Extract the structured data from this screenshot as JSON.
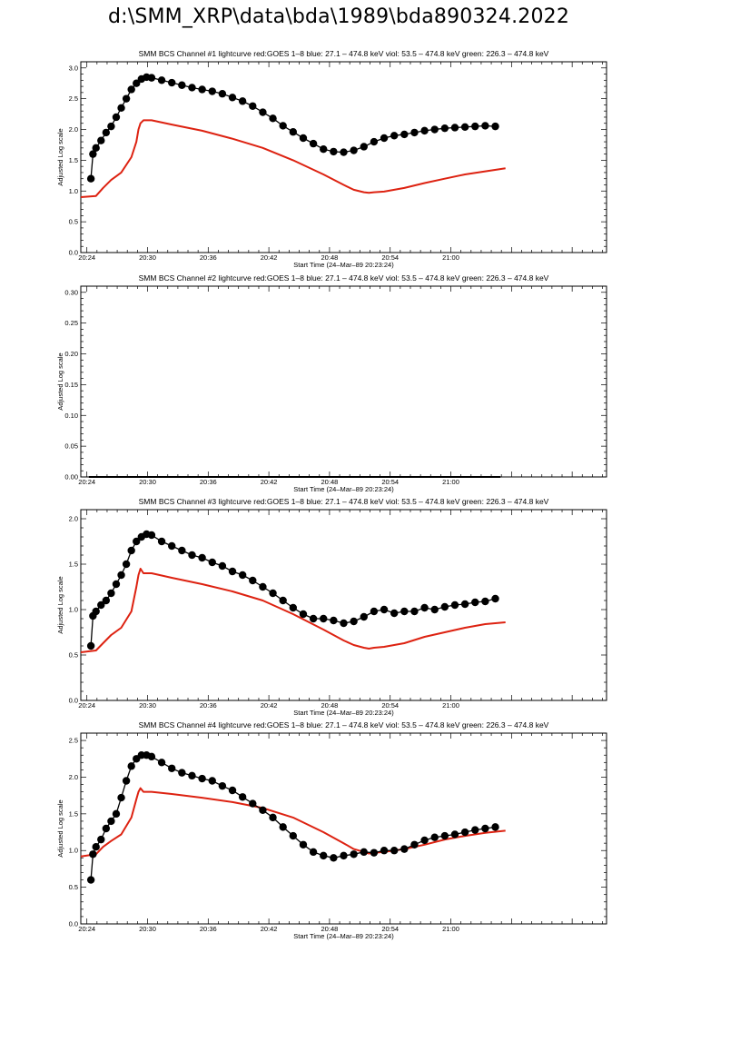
{
  "page": {
    "title": "d:\\SMM_XRP\\data\\bda\\1989\\bda890324.2022"
  },
  "legend_colors": {
    "red": "#dd2211",
    "black": "#000000"
  },
  "chart_data": [
    {
      "type": "line",
      "title": "SMM BCS Channel #1 lightcurve  red:GOES 1–8  blue: 27.1 – 474.8 keV  viol: 53.5 – 474.8 keV  green: 226.3 – 474.8 keV",
      "xlabel": "Start Time (24–Mar–89 20:23:24)",
      "ylabel": "Adjusted Log scale",
      "x_unit": "minutes after 20:23:24",
      "xlim": [
        0,
        52
      ],
      "ylim": [
        0,
        3.1
      ],
      "xticks": [
        {
          "value": 0.6,
          "label": "20:24"
        },
        {
          "value": 6.6,
          "label": "20:30"
        },
        {
          "value": 12.6,
          "label": "20:36"
        },
        {
          "value": 18.6,
          "label": "20:42"
        },
        {
          "value": 24.6,
          "label": "20:48"
        },
        {
          "value": 30.6,
          "label": "20:54"
        },
        {
          "value": 36.6,
          "label": "21:00"
        }
      ],
      "yticks": [
        {
          "value": 0,
          "label": "0.0"
        },
        {
          "value": 0.5,
          "label": "0.5"
        },
        {
          "value": 1.0,
          "label": "1.0"
        },
        {
          "value": 1.5,
          "label": "1.5"
        },
        {
          "value": 2.0,
          "label": "2.0"
        },
        {
          "value": 2.5,
          "label": "2.5"
        },
        {
          "value": 3.0,
          "label": "3.0"
        }
      ],
      "series": [
        {
          "color": "red",
          "style": "line",
          "x": [
            0,
            1.5,
            2.2,
            3,
            4,
            5,
            5.5,
            5.7,
            5.9,
            6.2,
            7,
            9,
            12,
            15,
            18,
            21,
            24,
            26,
            27,
            28,
            28.5,
            29,
            30,
            32,
            34,
            36,
            38,
            40,
            42
          ],
          "y": [
            0.9,
            0.92,
            1.05,
            1.18,
            1.3,
            1.55,
            1.8,
            2.0,
            2.1,
            2.15,
            2.15,
            2.08,
            1.98,
            1.85,
            1.7,
            1.5,
            1.27,
            1.1,
            1.02,
            0.98,
            0.97,
            0.98,
            0.99,
            1.05,
            1.13,
            1.2,
            1.27,
            1.32,
            1.37
          ]
        },
        {
          "color": "black",
          "style": "points",
          "x": [
            1,
            1.2,
            1.5,
            2,
            2.5,
            3,
            3.5,
            4,
            4.5,
            5,
            5.5,
            6,
            6.5,
            7,
            8,
            9,
            10,
            11,
            12,
            13,
            14,
            15,
            16,
            17,
            18,
            19,
            20,
            21,
            22,
            23,
            24,
            25,
            26,
            27,
            28,
            29,
            30,
            31,
            32,
            33,
            34,
            35,
            36,
            37,
            38,
            39,
            40,
            41
          ],
          "y": [
            1.2,
            1.6,
            1.7,
            1.82,
            1.95,
            2.05,
            2.2,
            2.35,
            2.5,
            2.65,
            2.75,
            2.82,
            2.85,
            2.84,
            2.8,
            2.76,
            2.72,
            2.68,
            2.65,
            2.62,
            2.58,
            2.52,
            2.46,
            2.38,
            2.28,
            2.18,
            2.06,
            1.96,
            1.86,
            1.77,
            1.68,
            1.64,
            1.63,
            1.66,
            1.72,
            1.8,
            1.86,
            1.9,
            1.92,
            1.95,
            1.98,
            2.0,
            2.02,
            2.03,
            2.04,
            2.05,
            2.06,
            2.05
          ]
        }
      ]
    },
    {
      "type": "line",
      "title": "SMM BCS Channel #2 lightcurve  red:GOES 1–8  blue: 27.1 – 474.8 keV  viol: 53.5 – 474.8 keV  green: 226.3 – 474.8 keV",
      "xlabel": "Start Time (24–Mar–89 20:23:24)",
      "ylabel": "Adjusted Log scale",
      "x_unit": "minutes after 20:23:24",
      "xlim": [
        0,
        52
      ],
      "ylim": [
        0,
        0.31
      ],
      "xticks": [
        {
          "value": 0.6,
          "label": "20:24"
        },
        {
          "value": 6.6,
          "label": "20:30"
        },
        {
          "value": 12.6,
          "label": "20:36"
        },
        {
          "value": 18.6,
          "label": "20:42"
        },
        {
          "value": 24.6,
          "label": "20:48"
        },
        {
          "value": 30.6,
          "label": "20:54"
        },
        {
          "value": 36.6,
          "label": "21:00"
        }
      ],
      "yticks": [
        {
          "value": 0,
          "label": "0.00"
        },
        {
          "value": 0.05,
          "label": "0.05"
        },
        {
          "value": 0.1,
          "label": "0.10"
        },
        {
          "value": 0.15,
          "label": "0.15"
        },
        {
          "value": 0.2,
          "label": "0.20"
        },
        {
          "value": 0.25,
          "label": "0.25"
        },
        {
          "value": 0.3,
          "label": "0.30"
        }
      ],
      "series": [
        {
          "color": "black",
          "style": "line",
          "x": [
            0.8,
            41.5
          ],
          "y": [
            0,
            0
          ]
        }
      ]
    },
    {
      "type": "line",
      "title": "SMM BCS Channel #3 lightcurve  red:GOES 1–8  blue: 27.1 – 474.8 keV  viol: 53.5 – 474.8 keV  green: 226.3 – 474.8 keV",
      "xlabel": "Start Time (24–Mar–89 20:23:24)",
      "ylabel": "Adjusted Log scale",
      "x_unit": "minutes after 20:23:24",
      "xlim": [
        0,
        52
      ],
      "ylim": [
        0,
        2.1
      ],
      "xticks": [
        {
          "value": 0.6,
          "label": "20:24"
        },
        {
          "value": 6.6,
          "label": "20:30"
        },
        {
          "value": 12.6,
          "label": "20:36"
        },
        {
          "value": 18.6,
          "label": "20:42"
        },
        {
          "value": 24.6,
          "label": "20:48"
        },
        {
          "value": 30.6,
          "label": "20:54"
        },
        {
          "value": 36.6,
          "label": "21:00"
        }
      ],
      "yticks": [
        {
          "value": 0,
          "label": "0.0"
        },
        {
          "value": 0.5,
          "label": "0.5"
        },
        {
          "value": 1.0,
          "label": "1.0"
        },
        {
          "value": 1.5,
          "label": "1.5"
        },
        {
          "value": 2.0,
          "label": "2.0"
        }
      ],
      "series": [
        {
          "color": "red",
          "style": "line",
          "x": [
            0,
            1.5,
            2.2,
            3,
            4,
            5,
            5.5,
            5.7,
            5.9,
            6.2,
            7,
            9,
            12,
            15,
            18,
            21,
            24,
            26,
            27,
            28,
            28.5,
            29,
            30,
            32,
            34,
            36,
            38,
            40,
            42
          ],
          "y": [
            0.53,
            0.55,
            0.63,
            0.72,
            0.8,
            0.98,
            1.25,
            1.38,
            1.45,
            1.4,
            1.4,
            1.35,
            1.28,
            1.2,
            1.1,
            0.95,
            0.78,
            0.66,
            0.61,
            0.58,
            0.57,
            0.58,
            0.59,
            0.63,
            0.7,
            0.75,
            0.8,
            0.84,
            0.86
          ]
        },
        {
          "color": "black",
          "style": "points",
          "x": [
            1,
            1.2,
            1.5,
            2,
            2.5,
            3,
            3.5,
            4,
            4.5,
            5,
            5.5,
            6,
            6.5,
            7,
            8,
            9,
            10,
            11,
            12,
            13,
            14,
            15,
            16,
            17,
            18,
            19,
            20,
            21,
            22,
            23,
            24,
            25,
            26,
            27,
            28,
            29,
            30,
            31,
            32,
            33,
            34,
            35,
            36,
            37,
            38,
            39,
            40,
            41
          ],
          "y": [
            0.6,
            0.93,
            0.98,
            1.05,
            1.1,
            1.18,
            1.28,
            1.38,
            1.5,
            1.65,
            1.75,
            1.8,
            1.83,
            1.82,
            1.75,
            1.7,
            1.65,
            1.6,
            1.57,
            1.52,
            1.48,
            1.42,
            1.38,
            1.32,
            1.25,
            1.18,
            1.1,
            1.02,
            0.95,
            0.9,
            0.9,
            0.88,
            0.85,
            0.87,
            0.92,
            0.98,
            1.0,
            0.96,
            0.98,
            0.98,
            1.02,
            1.0,
            1.03,
            1.05,
            1.06,
            1.08,
            1.09,
            1.12
          ]
        }
      ]
    },
    {
      "type": "line",
      "title": "SMM BCS Channel #4 lightcurve  red:GOES 1–8  blue: 27.1 – 474.8 keV  viol: 53.5 – 474.8 keV  green: 226.3 – 474.8 keV",
      "xlabel": "Start Time (24–Mar–89 20:23:24)",
      "ylabel": "Adjusted Log scale",
      "x_unit": "minutes after 20:23:24",
      "xlim": [
        0,
        52
      ],
      "ylim": [
        0,
        2.6
      ],
      "xticks": [
        {
          "value": 0.6,
          "label": "20:24"
        },
        {
          "value": 6.6,
          "label": "20:30"
        },
        {
          "value": 12.6,
          "label": "20:36"
        },
        {
          "value": 18.6,
          "label": "20:42"
        },
        {
          "value": 24.6,
          "label": "20:48"
        },
        {
          "value": 30.6,
          "label": "20:54"
        },
        {
          "value": 36.6,
          "label": "21:00"
        }
      ],
      "yticks": [
        {
          "value": 0,
          "label": "0.0"
        },
        {
          "value": 0.5,
          "label": "0.5"
        },
        {
          "value": 1.0,
          "label": "1.0"
        },
        {
          "value": 1.5,
          "label": "1.5"
        },
        {
          "value": 2.0,
          "label": "2.0"
        },
        {
          "value": 2.5,
          "label": "2.5"
        }
      ],
      "series": [
        {
          "color": "red",
          "style": "line",
          "x": [
            0,
            1.5,
            2.2,
            3,
            4,
            5,
            5.5,
            5.7,
            5.9,
            6.2,
            7,
            9,
            12,
            15,
            18,
            21,
            24,
            26,
            27,
            28,
            28.5,
            29,
            30,
            32,
            34,
            36,
            38,
            40,
            42
          ],
          "y": [
            0.92,
            0.95,
            1.05,
            1.13,
            1.22,
            1.45,
            1.7,
            1.8,
            1.85,
            1.8,
            1.8,
            1.77,
            1.72,
            1.66,
            1.58,
            1.45,
            1.25,
            1.1,
            1.02,
            0.98,
            0.96,
            0.97,
            0.98,
            1.02,
            1.08,
            1.15,
            1.2,
            1.24,
            1.27
          ]
        },
        {
          "color": "black",
          "style": "points",
          "x": [
            1,
            1.2,
            1.5,
            2,
            2.5,
            3,
            3.5,
            4,
            4.5,
            5,
            5.5,
            6,
            6.5,
            7,
            8,
            9,
            10,
            11,
            12,
            13,
            14,
            15,
            16,
            17,
            18,
            19,
            20,
            21,
            22,
            23,
            24,
            25,
            26,
            27,
            28,
            29,
            30,
            31,
            32,
            33,
            34,
            35,
            36,
            37,
            38,
            39,
            40,
            41
          ],
          "y": [
            0.6,
            0.95,
            1.05,
            1.15,
            1.3,
            1.4,
            1.5,
            1.72,
            1.95,
            2.15,
            2.25,
            2.3,
            2.3,
            2.28,
            2.2,
            2.12,
            2.06,
            2.02,
            1.98,
            1.95,
            1.88,
            1.82,
            1.73,
            1.64,
            1.55,
            1.45,
            1.32,
            1.2,
            1.08,
            0.98,
            0.93,
            0.9,
            0.93,
            0.95,
            0.98,
            0.97,
            1.0,
            1.0,
            1.02,
            1.08,
            1.14,
            1.18,
            1.2,
            1.22,
            1.25,
            1.28,
            1.3,
            1.32
          ]
        }
      ]
    }
  ]
}
